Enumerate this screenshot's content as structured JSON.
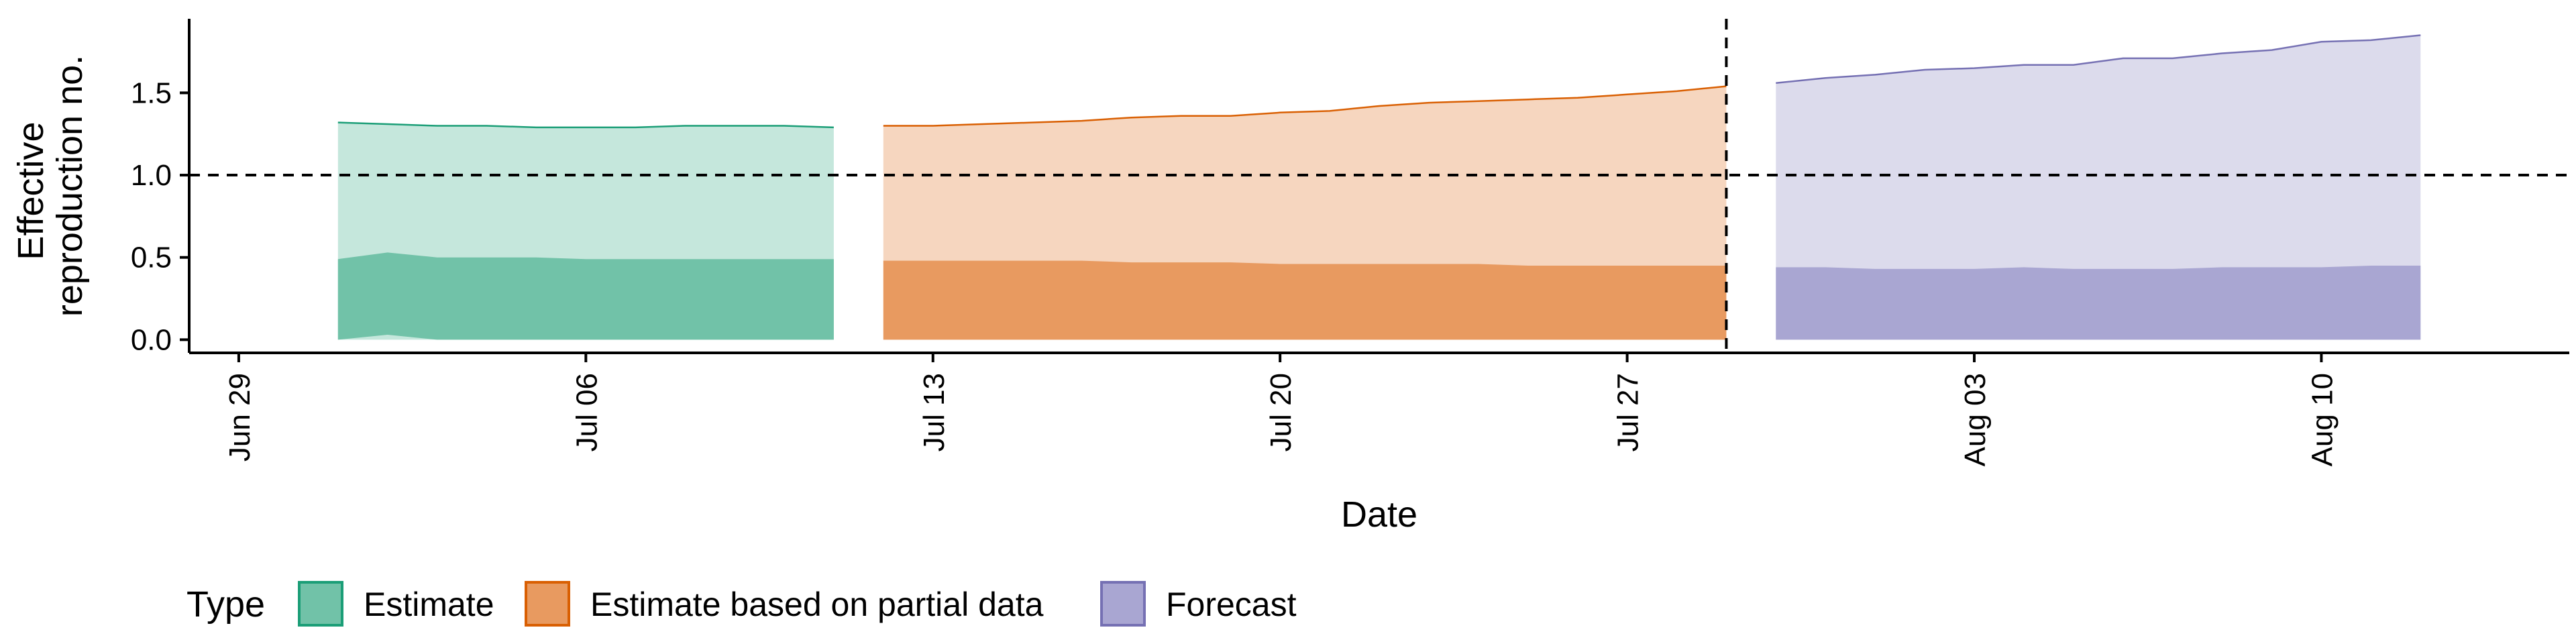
{
  "chart_data": {
    "type": "area",
    "xlabel": "Date",
    "ylabel_lines": [
      "Effective",
      "reproduction no."
    ],
    "x_range": [
      "2020-06-28",
      "2020-08-15"
    ],
    "ylim": [
      -0.08,
      1.95
    ],
    "y_ticks": [
      0.0,
      0.5,
      1.0,
      1.5
    ],
    "y_tick_labels": [
      "0.0",
      "0.5",
      "1.0",
      "1.5"
    ],
    "x_ticks": [
      "2020-06-29",
      "2020-07-06",
      "2020-07-13",
      "2020-07-20",
      "2020-07-27",
      "2020-08-03",
      "2020-08-10"
    ],
    "x_tick_labels": [
      "Jun 29",
      "Jul 06",
      "Jul 13",
      "Jul 20",
      "Jul 27",
      "Aug 03",
      "Aug 10"
    ],
    "reference_line_y": 1.0,
    "reference_line_date": "2020-07-29",
    "grid": false,
    "legend": {
      "title": "Type",
      "position": "bottom-left",
      "items": [
        {
          "label": "Estimate",
          "fill": "#71c2a8",
          "stroke": "#1b9e77"
        },
        {
          "label": "Estimate based on partial data",
          "fill": "#e89a60",
          "stroke": "#d95f02"
        },
        {
          "label": "Forecast",
          "fill": "#a9a6d2",
          "stroke": "#7570b3"
        }
      ]
    },
    "series": [
      {
        "name": "Estimate",
        "fill_outer": "#c5e7dc",
        "fill_inner": "#71c2a8",
        "stroke": "#1b9e77",
        "dates": [
          "2020-07-01",
          "2020-07-02",
          "2020-07-03",
          "2020-07-04",
          "2020-07-05",
          "2020-07-06",
          "2020-07-07",
          "2020-07-08",
          "2020-07-09",
          "2020-07-10",
          "2020-07-11"
        ],
        "outer_upper": [
          1.32,
          1.31,
          1.3,
          1.3,
          1.29,
          1.29,
          1.29,
          1.3,
          1.3,
          1.3,
          1.29
        ],
        "inner_upper": [
          0.49,
          0.53,
          0.5,
          0.5,
          0.5,
          0.49,
          0.49,
          0.49,
          0.49,
          0.49,
          0.49
        ],
        "inner_lower": [
          0.0,
          0.03,
          0.0,
          0.0,
          0.0,
          0.0,
          0.0,
          0.0,
          0.0,
          0.0,
          0.0
        ]
      },
      {
        "name": "Estimate based on partial data",
        "fill_outer": "#f6d6bf",
        "fill_inner": "#e89a60",
        "stroke": "#d95f02",
        "dates": [
          "2020-07-12",
          "2020-07-13",
          "2020-07-14",
          "2020-07-15",
          "2020-07-16",
          "2020-07-17",
          "2020-07-18",
          "2020-07-19",
          "2020-07-20",
          "2020-07-21",
          "2020-07-22",
          "2020-07-23",
          "2020-07-24",
          "2020-07-25",
          "2020-07-26",
          "2020-07-27",
          "2020-07-28",
          "2020-07-29"
        ],
        "outer_upper": [
          1.3,
          1.3,
          1.31,
          1.32,
          1.33,
          1.35,
          1.36,
          1.36,
          1.38,
          1.39,
          1.42,
          1.44,
          1.45,
          1.46,
          1.47,
          1.49,
          1.51,
          1.54
        ],
        "inner_upper": [
          0.48,
          0.48,
          0.48,
          0.48,
          0.48,
          0.47,
          0.47,
          0.47,
          0.46,
          0.46,
          0.46,
          0.46,
          0.46,
          0.45,
          0.45,
          0.45,
          0.45,
          0.45
        ],
        "inner_lower": [
          0.0,
          0.0,
          0.0,
          0.0,
          0.0,
          0.0,
          0.0,
          0.0,
          0.0,
          0.0,
          0.0,
          0.0,
          0.0,
          0.0,
          0.0,
          0.0,
          0.0,
          0.0
        ]
      },
      {
        "name": "Forecast",
        "fill_outer": "#dcdbec",
        "fill_inner": "#a9a6d2",
        "stroke": "#7570b3",
        "dates": [
          "2020-07-30",
          "2020-07-31",
          "2020-08-01",
          "2020-08-02",
          "2020-08-03",
          "2020-08-04",
          "2020-08-05",
          "2020-08-06",
          "2020-08-07",
          "2020-08-08",
          "2020-08-09",
          "2020-08-10",
          "2020-08-11",
          "2020-08-12"
        ],
        "outer_upper": [
          1.56,
          1.59,
          1.61,
          1.64,
          1.65,
          1.67,
          1.67,
          1.71,
          1.71,
          1.74,
          1.76,
          1.81,
          1.82,
          1.85
        ],
        "inner_upper": [
          0.44,
          0.44,
          0.43,
          0.43,
          0.43,
          0.44,
          0.43,
          0.43,
          0.43,
          0.44,
          0.44,
          0.44,
          0.45,
          0.45
        ],
        "inner_lower": [
          0.0,
          0.0,
          0.0,
          0.0,
          0.0,
          0.0,
          0.0,
          0.0,
          0.0,
          0.0,
          0.0,
          0.0,
          0.0,
          0.0
        ]
      }
    ]
  }
}
